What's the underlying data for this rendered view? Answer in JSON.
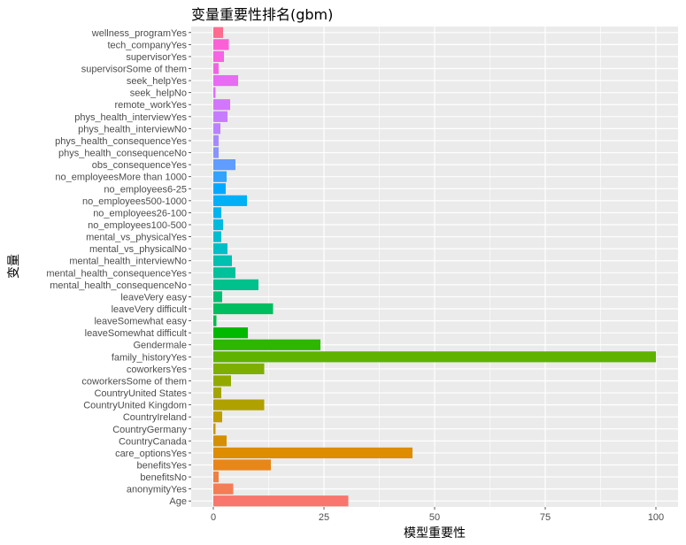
{
  "chart_data": {
    "type": "bar",
    "orientation": "horizontal",
    "title": "变量重要性排名(gbm)",
    "xlabel": "模型重要性",
    "ylabel": "变量",
    "xlim": [
      -5,
      105
    ],
    "xticks": [
      0,
      25,
      50,
      75,
      100
    ],
    "grid": true,
    "legend": "none",
    "categories": [
      "Age",
      "anonymityYes",
      "benefitsNo",
      "benefitsYes",
      "care_optionsYes",
      "CountryCanada",
      "CountryGermany",
      "CountryIreland",
      "CountryUnited Kingdom",
      "CountryUnited States",
      "coworkersSome of them",
      "coworkersYes",
      "family_historyYes",
      "Gendermale",
      "leaveSomewhat difficult",
      "leaveSomewhat easy",
      "leaveVery difficult",
      "leaveVery easy",
      "mental_health_consequenceNo",
      "mental_health_consequenceYes",
      "mental_health_interviewNo",
      "mental_vs_physicalNo",
      "mental_vs_physicalYes",
      "no_employees100-500",
      "no_employees26-100",
      "no_employees500-1000",
      "no_employees6-25",
      "no_employeesMore than 1000",
      "obs_consequenceYes",
      "phys_health_consequenceNo",
      "phys_health_consequenceYes",
      "phys_health_interviewNo",
      "phys_health_interviewYes",
      "remote_workYes",
      "seek_helpNo",
      "seek_helpYes",
      "supervisorSome of them",
      "supervisorYes",
      "tech_companyYes",
      "wellness_programYes"
    ],
    "values": [
      30.5,
      4.5,
      1.2,
      13.0,
      45.0,
      3.0,
      0.5,
      2.0,
      11.5,
      1.8,
      4.0,
      11.5,
      100.0,
      24.2,
      7.8,
      0.7,
      13.5,
      2.0,
      10.2,
      5.0,
      4.2,
      3.2,
      1.8,
      2.2,
      1.8,
      7.6,
      2.8,
      3.0,
      5.0,
      1.2,
      1.2,
      1.6,
      3.2,
      3.8,
      0.5,
      5.6,
      1.2,
      2.4,
      3.5,
      2.2
    ],
    "colors": [
      "#F8766D",
      "#F47C56",
      "#EE8043",
      "#E7861B",
      "#DE8C00",
      "#D49000",
      "#C99800",
      "#BD9D00",
      "#AFA100",
      "#A3A500",
      "#92AA00",
      "#7EAE00",
      "#5FB200",
      "#2EB600",
      "#00B900",
      "#00BC4A",
      "#00BD5F",
      "#00BF74",
      "#00C08B",
      "#00C19A",
      "#00C0AF",
      "#00BFC4",
      "#00BDD0",
      "#00BADE",
      "#00B4EF",
      "#00B0F6",
      "#00A9FF",
      "#35A2FF",
      "#619CFF",
      "#8B93FF",
      "#A58AFF",
      "#B983FF",
      "#C77CFF",
      "#D277FA",
      "#DF70F8",
      "#E76BF3",
      "#F064E2",
      "#F763E0",
      "#FB61D7",
      "#FF6C90"
    ]
  }
}
